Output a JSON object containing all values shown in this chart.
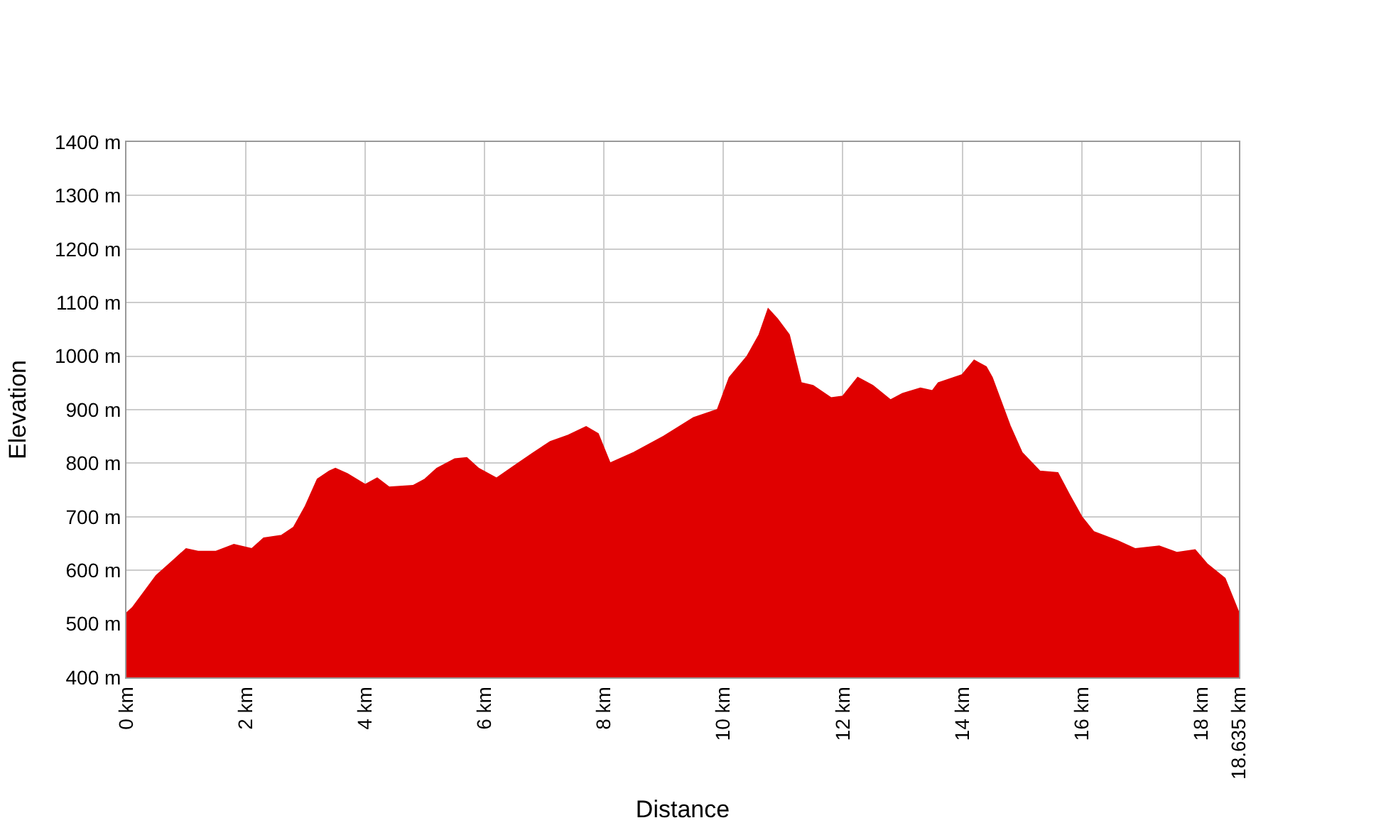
{
  "chart_data": {
    "type": "area",
    "xlabel": "Distance",
    "ylabel": "Elevation",
    "x": [
      0,
      0.1,
      0.5,
      0.8,
      1.0,
      1.2,
      1.5,
      1.8,
      2.1,
      2.3,
      2.6,
      2.8,
      3.0,
      3.2,
      3.4,
      3.5,
      3.7,
      4.0,
      4.2,
      4.4,
      4.8,
      5.0,
      5.2,
      5.5,
      5.7,
      5.9,
      6.2,
      6.5,
      6.8,
      7.1,
      7.4,
      7.7,
      7.9,
      8.1,
      8.5,
      9.0,
      9.5,
      9.9,
      10.1,
      10.4,
      10.6,
      10.75,
      10.9,
      11.1,
      11.3,
      11.5,
      11.8,
      12.0,
      12.25,
      12.5,
      12.8,
      13.0,
      13.3,
      13.5,
      13.6,
      14.0,
      14.2,
      14.4,
      14.5,
      14.8,
      15.0,
      15.3,
      15.6,
      15.8,
      16.0,
      16.2,
      16.6,
      16.9,
      17.3,
      17.6,
      17.9,
      18.1,
      18.4,
      18.635
    ],
    "series": [
      {
        "color": "#e00000",
        "values": [
          520,
          530,
          590,
          620,
          640,
          635,
          635,
          648,
          640,
          660,
          665,
          680,
          720,
          770,
          785,
          790,
          780,
          760,
          772,
          755,
          758,
          770,
          790,
          808,
          810,
          790,
          772,
          795,
          818,
          840,
          852,
          868,
          855,
          800,
          820,
          850,
          885,
          900,
          960,
          1000,
          1040,
          1088,
          1070,
          1040,
          950,
          945,
          922,
          925,
          960,
          945,
          918,
          930,
          940,
          935,
          950,
          965,
          992,
          980,
          960,
          870,
          820,
          785,
          782,
          740,
          700,
          672,
          655,
          640,
          645,
          633,
          638,
          612,
          585,
          520
        ]
      }
    ],
    "xlim": [
      0,
      18.635
    ],
    "xticks": [
      {
        "value": 0,
        "label": "0 km"
      },
      {
        "value": 2,
        "label": "2 km"
      },
      {
        "value": 4,
        "label": "4 km"
      },
      {
        "value": 6,
        "label": "6 km"
      },
      {
        "value": 8,
        "label": "8 km"
      },
      {
        "value": 10,
        "label": "10 km"
      },
      {
        "value": 12,
        "label": "12 km"
      },
      {
        "value": 14,
        "label": "14 km"
      },
      {
        "value": 16,
        "label": "16 km"
      },
      {
        "value": 18,
        "label": "18 km"
      },
      {
        "value": 18.635,
        "label": "18.635 km"
      }
    ],
    "ylim": [
      400,
      1400
    ],
    "yticks": [
      {
        "value": 400,
        "label": "400 m"
      },
      {
        "value": 500,
        "label": "500 m"
      },
      {
        "value": 600,
        "label": "600 m"
      },
      {
        "value": 700,
        "label": "700 m"
      },
      {
        "value": 800,
        "label": "800 m"
      },
      {
        "value": 900,
        "label": "900 m"
      },
      {
        "value": 1000,
        "label": "1000 m"
      },
      {
        "value": 1100,
        "label": "1100 m"
      },
      {
        "value": 1200,
        "label": "1200 m"
      },
      {
        "value": 1300,
        "label": "1300 m"
      },
      {
        "value": 1400,
        "label": "1400 m"
      }
    ],
    "grid": true
  }
}
